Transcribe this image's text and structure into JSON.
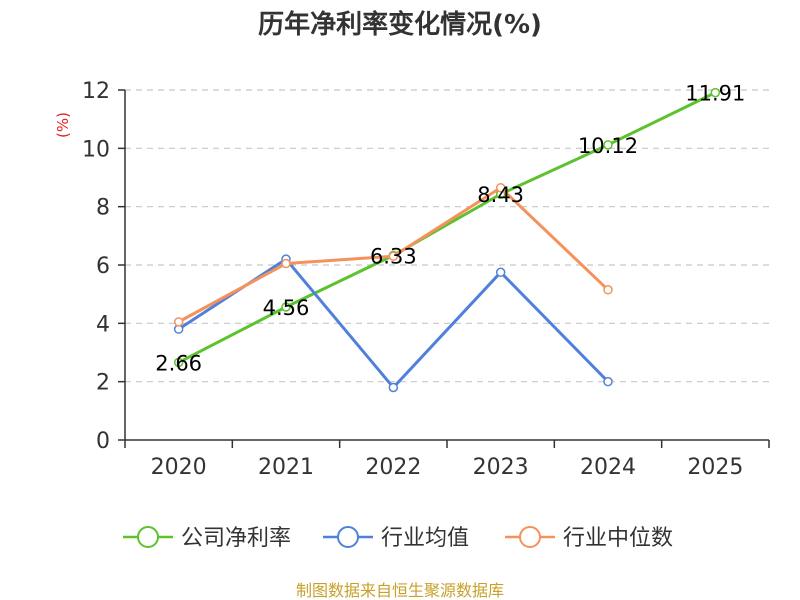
{
  "chart_data": {
    "type": "line",
    "title": "历年净利率变化情况(%)",
    "ylabel": "(%)",
    "xlabel": "",
    "categories": [
      "2020",
      "2021",
      "2022",
      "2023",
      "2024",
      "2025"
    ],
    "ylim": [
      0,
      12
    ],
    "yticks": [
      "0",
      "2",
      "4",
      "6",
      "8",
      "10",
      "12"
    ],
    "grid": true,
    "legend_position": "bottom",
    "series": [
      {
        "name": "公司净利率",
        "color": "#5cc22e",
        "values": [
          2.66,
          4.56,
          6.33,
          8.43,
          10.12,
          11.91
        ],
        "labels": [
          "2.66",
          "4.56",
          "6.33",
          "8.43",
          "10.12",
          "11.91"
        ]
      },
      {
        "name": "行业均值",
        "color": "#5080dc",
        "values": [
          3.8,
          6.2,
          1.8,
          5.75,
          2.0,
          null
        ]
      },
      {
        "name": "行业中位数",
        "color": "#f5915a",
        "values": [
          4.05,
          6.05,
          6.3,
          8.65,
          5.15,
          null
        ]
      }
    ]
  },
  "colors": {
    "axis": "#333333",
    "grid": "#c8c8c8",
    "unit_label": "#e02020",
    "source_label": "#c8a02a"
  },
  "source": "制图数据来自恒生聚源数据库"
}
